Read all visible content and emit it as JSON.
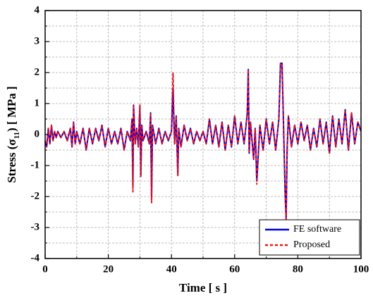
{
  "chart_data": {
    "type": "line",
    "xlabel": "Time [ s ]",
    "ylabel_parts": [
      "Stress (σ",
      "11",
      ") [ MPa ]"
    ],
    "x": [
      0,
      0.5,
      1,
      1.5,
      2,
      2.5,
      3,
      3.5,
      4,
      5,
      6,
      7,
      8,
      8.5,
      9,
      9.5,
      10,
      11,
      12,
      13,
      14,
      15,
      16,
      17,
      18,
      19,
      20,
      21,
      22,
      23,
      24,
      25,
      26,
      27,
      27.5,
      27.8,
      28,
      28.5,
      29,
      29.5,
      30,
      30.3,
      30.6,
      31,
      32,
      33,
      33.4,
      33.7,
      34,
      35,
      36,
      37,
      38,
      39,
      40,
      40.5,
      40.8,
      41,
      41.5,
      42,
      42.3,
      43,
      44,
      45,
      46,
      47,
      48,
      49,
      50,
      51,
      52,
      53,
      54,
      55,
      56,
      57,
      58,
      59,
      60,
      61,
      62,
      63,
      64,
      64.3,
      64.6,
      65,
      66,
      66.5,
      67,
      68,
      69,
      70,
      71,
      72,
      73,
      74,
      74.5,
      75,
      75.5,
      76,
      76.3,
      76.6,
      77,
      78,
      79,
      80,
      81,
      82,
      83,
      84,
      85,
      86,
      87,
      88,
      89,
      90,
      91,
      92,
      93,
      94,
      95,
      96,
      97,
      98,
      99,
      100
    ],
    "series": [
      {
        "name": "FE software",
        "color": "#0000dd",
        "style": "solid",
        "values": [
          -0.2,
          -0.4,
          0.2,
          -0.3,
          0.3,
          -0.2,
          0.1,
          -0.1,
          0.1,
          -0.1,
          0.1,
          -0.2,
          0.2,
          -0.4,
          0.4,
          -0.3,
          0.1,
          -0.3,
          0.2,
          -0.5,
          0.2,
          -0.3,
          0.2,
          -0.2,
          0.3,
          -0.4,
          0.2,
          -0.3,
          0.1,
          -0.3,
          0.2,
          -0.5,
          0.1,
          -0.2,
          0.5,
          -1.7,
          0.95,
          -0.3,
          0.2,
          -0.4,
          0.95,
          -1.35,
          0.3,
          -0.2,
          0.1,
          -0.3,
          0.7,
          -2.1,
          0.3,
          -0.3,
          0.2,
          -0.3,
          0.1,
          -0.2,
          0.1,
          1.5,
          0.3,
          -0.3,
          0.6,
          -1.3,
          0.2,
          -0.4,
          0.3,
          -0.2,
          0.2,
          -0.3,
          0.1,
          -0.2,
          0.1,
          -0.3,
          0.5,
          -0.3,
          0.3,
          -0.4,
          0.4,
          -0.5,
          0.3,
          -0.4,
          0.6,
          -0.3,
          0.4,
          -0.3,
          0.7,
          2.1,
          -0.6,
          0.4,
          -0.8,
          0.2,
          -1.5,
          0.3,
          -0.5,
          0.5,
          -0.3,
          0.4,
          -0.5,
          0.5,
          2.3,
          2.3,
          0.2,
          -2.0,
          -2.7,
          -0.5,
          0.6,
          -0.4,
          0.3,
          -0.3,
          0.4,
          -0.2,
          0.3,
          -0.5,
          0.2,
          -0.4,
          0.5,
          -0.3,
          0.4,
          -0.6,
          0.6,
          -0.4,
          0.5,
          -0.3,
          0.8,
          -0.5,
          0.7,
          -0.3,
          0.4,
          0.1
        ]
      },
      {
        "name": "Proposed",
        "color": "#ee1111",
        "style": "dashed",
        "values": [
          -0.2,
          -0.4,
          0.2,
          -0.3,
          0.3,
          -0.2,
          0.1,
          -0.1,
          0.1,
          -0.1,
          0.1,
          -0.2,
          0.2,
          -0.4,
          0.4,
          -0.3,
          0.1,
          -0.3,
          0.2,
          -0.5,
          0.2,
          -0.3,
          0.2,
          -0.2,
          0.3,
          -0.4,
          0.2,
          -0.3,
          0.1,
          -0.3,
          0.2,
          -0.5,
          0.1,
          -0.2,
          0.5,
          -1.85,
          0.95,
          -0.3,
          0.2,
          -0.4,
          0.95,
          -1.35,
          0.3,
          -0.2,
          0.1,
          -0.3,
          0.7,
          -2.2,
          0.3,
          -0.3,
          0.2,
          -0.3,
          0.1,
          -0.2,
          0.1,
          2.0,
          0.3,
          -0.3,
          0.6,
          -1.35,
          0.2,
          -0.4,
          0.3,
          -0.2,
          0.2,
          -0.3,
          0.1,
          -0.2,
          0.1,
          -0.3,
          0.5,
          -0.3,
          0.3,
          -0.4,
          0.4,
          -0.5,
          0.3,
          -0.4,
          0.6,
          -0.3,
          0.4,
          -0.3,
          0.7,
          2.1,
          -0.6,
          0.4,
          -0.8,
          0.2,
          -1.6,
          0.3,
          -0.5,
          0.5,
          -0.3,
          0.4,
          -0.5,
          0.5,
          2.3,
          2.3,
          0.2,
          -2.0,
          -2.8,
          -0.5,
          0.6,
          -0.4,
          0.3,
          -0.3,
          0.4,
          -0.2,
          0.3,
          -0.5,
          0.2,
          -0.4,
          0.5,
          -0.3,
          0.4,
          -0.6,
          0.6,
          -0.4,
          0.5,
          -0.3,
          0.8,
          -0.5,
          0.7,
          -0.3,
          0.4,
          0.1
        ]
      }
    ],
    "xlim": [
      0,
      100
    ],
    "xticks": [
      0,
      20,
      40,
      60,
      80,
      100
    ],
    "xminor_ticks": [
      10,
      30,
      50,
      70,
      90
    ],
    "ylim": [
      -4,
      4
    ],
    "yticks": [
      -4,
      -3,
      -2,
      -1,
      0,
      1,
      2,
      3,
      4
    ],
    "yminor_ticks": [
      -3.5,
      -2.5,
      -1.5,
      -0.5,
      0.5,
      1.5,
      2.5,
      3.5
    ],
    "grid": true,
    "legend": "lower-right"
  }
}
